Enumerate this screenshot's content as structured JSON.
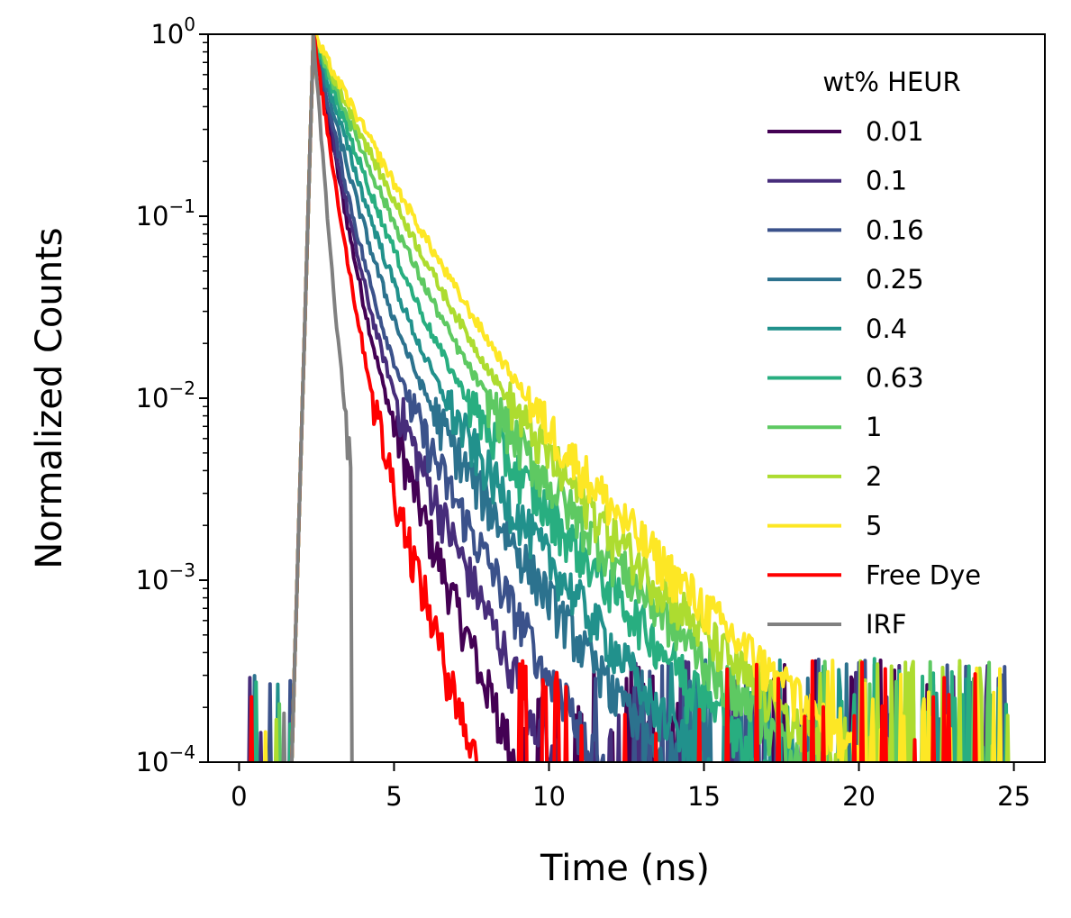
{
  "chart_data": {
    "type": "line",
    "xlabel": "Time (ns)",
    "ylabel": "Normalized Counts",
    "xlim": [
      -1,
      26
    ],
    "ylim": [
      0.0001,
      1
    ],
    "yscale": "log",
    "xticks": [
      "0",
      "5",
      "10",
      "15",
      "20",
      "25"
    ],
    "yticks": [
      {
        "base": "10",
        "exp": "−4"
      },
      {
        "base": "10",
        "exp": "−3"
      },
      {
        "base": "10",
        "exp": "−2"
      },
      {
        "base": "10",
        "exp": "−1"
      },
      {
        "base": "10",
        "exp": "0"
      }
    ],
    "grid": false,
    "legend": {
      "title": "wt% HEUR",
      "placement": "upper-right"
    },
    "peak_time": 2.4,
    "series": [
      {
        "name": "0.01",
        "color": "#440154",
        "tau": 0.42,
        "tail": 1.0
      },
      {
        "name": "0.1",
        "color": "#472d7b",
        "tau": 0.45,
        "tail": 1.2
      },
      {
        "name": "0.16",
        "color": "#3b528b",
        "tau": 0.5,
        "tail": 1.4
      },
      {
        "name": "0.25",
        "color": "#2c728e",
        "tau": 0.6,
        "tail": 1.7
      },
      {
        "name": "0.4",
        "color": "#21918c",
        "tau": 0.72,
        "tail": 1.9
      },
      {
        "name": "0.63",
        "color": "#28ae80",
        "tau": 0.85,
        "tail": 2.2
      },
      {
        "name": "1",
        "color": "#5ec962",
        "tau": 1.0,
        "tail": 2.4
      },
      {
        "name": "2",
        "color": "#addc30",
        "tau": 1.15,
        "tail": 2.55
      },
      {
        "name": "5",
        "color": "#fde725",
        "tau": 1.3,
        "tail": 2.7
      },
      {
        "name": "Free Dye",
        "color": "#ff0000",
        "tau": 0.35,
        "tail": 0.8
      },
      {
        "name": "IRF",
        "color": "#808080",
        "tau": 0.18,
        "tail": 0.4
      }
    ]
  }
}
